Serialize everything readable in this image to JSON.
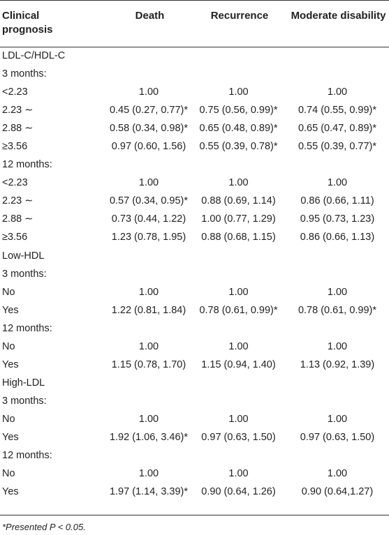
{
  "headers": [
    "Clinical\nprognosis",
    "Death",
    "Recurrence",
    "Moderate disability"
  ],
  "rows": [
    [
      "LDL-C/HDL-C",
      "",
      "",
      ""
    ],
    [
      "3 months:",
      "",
      "",
      ""
    ],
    [
      "<2.23",
      "1.00",
      "1.00",
      "1.00"
    ],
    [
      "2.23 ∼",
      "0.45 (0.27, 0.77)*",
      "0.75 (0.56, 0.99)*",
      "0.74 (0.55, 0.99)*"
    ],
    [
      "2.88 ∼",
      "0.58 (0.34, 0.98)*",
      "0.65 (0.48, 0.89)*",
      "0.65 (0.47, 0.89)*"
    ],
    [
      "≥3.56",
      "0.97 (0.60, 1.56)",
      "0.55 (0.39, 0.78)*",
      "0.55 (0.39, 0.77)*"
    ],
    [
      "12 months:",
      "",
      "",
      ""
    ],
    [
      "<2.23",
      "1.00",
      "1.00",
      "1.00"
    ],
    [
      "2.23 ∼",
      "0.57 (0.34, 0.95)*",
      "0.88 (0.69, 1.14)",
      "0.86 (0.66, 1.11)"
    ],
    [
      "2.88 ∼",
      "0.73 (0.44, 1.22)",
      "1.00 (0.77, 1.29)",
      "0.95 (0.73, 1.23)"
    ],
    [
      "≥3.56",
      "1.23 (0.78, 1.95)",
      "0.88 (0.68, 1.15)",
      "0.86 (0.66, 1.13)"
    ],
    [
      "Low-HDL",
      "",
      "",
      ""
    ],
    [
      "3 months:",
      "",
      "",
      ""
    ],
    [
      "No",
      "1.00",
      "1.00",
      "1.00"
    ],
    [
      "Yes",
      "1.22 (0.81, 1.84)",
      "0.78 (0.61, 0.99)*",
      "0.78 (0.61, 0.99)*"
    ],
    [
      "12 months:",
      "",
      "",
      ""
    ],
    [
      "No",
      "1.00",
      "1.00",
      "1.00"
    ],
    [
      "Yes",
      "1.15 (0.78, 1.70)",
      "1.15 (0.94, 1.40)",
      "1.13 (0.92, 1.39)"
    ],
    [
      "High-LDL",
      "",
      "",
      ""
    ],
    [
      "3 months:",
      "",
      "",
      ""
    ],
    [
      "No",
      "1.00",
      "1.00",
      "1.00"
    ],
    [
      "Yes",
      "1.92 (1.06, 3.46)*",
      "0.97 (0.63, 1.50)",
      "0.97 (0.63, 1.50)"
    ],
    [
      "12 months:",
      "",
      "",
      ""
    ],
    [
      "No",
      "1.00",
      "1.00",
      "1.00"
    ],
    [
      "Yes",
      "1.97 (1.14, 3.39)*",
      "0.90 (0.64, 1.26)",
      "0.90 (0.64,1.27)"
    ]
  ],
  "footnote": "*Presented P < 0.05."
}
